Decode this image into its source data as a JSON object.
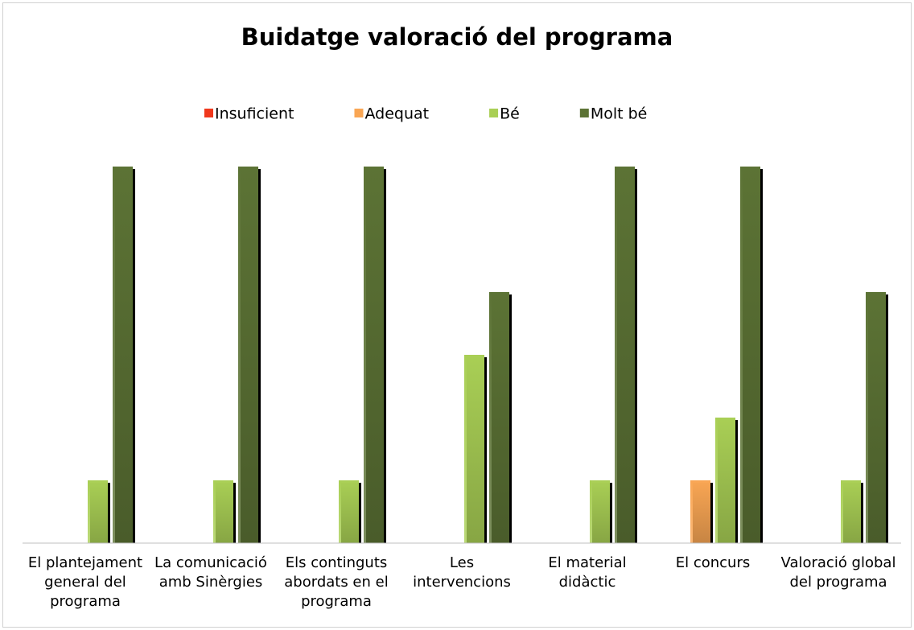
{
  "chart_data": {
    "type": "bar",
    "title": "Buidatge valoració del programa",
    "categories": [
      "El plantejament general del programa",
      "La comunicació amb Sinèrgies",
      "Els continguts abordats en el programa",
      "Les intervencions",
      "El material didàctic",
      "El concurs",
      "Valoració global del programa"
    ],
    "series": [
      {
        "name": "Insuficient",
        "color": "#f0381c",
        "values": [
          0,
          0,
          0,
          0,
          0,
          0,
          0
        ]
      },
      {
        "name": "Adequat",
        "color": "#f9a654",
        "values": [
          0,
          0,
          0,
          0,
          0,
          1,
          0
        ]
      },
      {
        "name": "Bé",
        "color": "#a9cf55",
        "values": [
          1,
          1,
          1,
          3,
          1,
          2,
          1
        ]
      },
      {
        "name": "Molt bé",
        "color": "#5c7335",
        "values": [
          6,
          6,
          6,
          4,
          6,
          6,
          4
        ]
      }
    ],
    "legend": "top"
  }
}
